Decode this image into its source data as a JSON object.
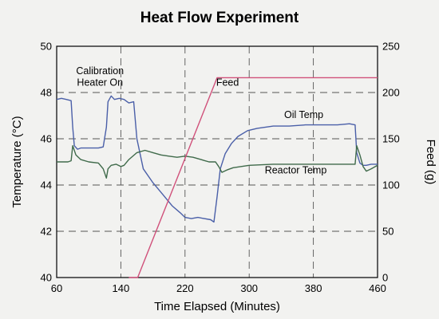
{
  "chart_data": {
    "type": "line",
    "title": "Heat Flow Experiment",
    "xlabel": "Time Elapsed (Minutes)",
    "ylabel_left": "Temperature (°C)",
    "ylabel_right": "Feed (g)",
    "xlim": [
      60,
      460
    ],
    "ylim_left": [
      40,
      50
    ],
    "ylim_right": [
      0,
      250
    ],
    "x_ticks": [
      60,
      140,
      220,
      300,
      380,
      460
    ],
    "y_left_ticks": [
      40,
      42,
      44,
      46,
      48,
      50
    ],
    "y_right_ticks": [
      0,
      50,
      100,
      150,
      200,
      250
    ],
    "grid": true,
    "annotations": [
      {
        "text": "Calibration",
        "x": 114,
        "y": 48.8
      },
      {
        "text": "Heater On",
        "x": 114,
        "y": 48.3
      },
      {
        "text": "Feed",
        "x": 273,
        "y": 48.3
      },
      {
        "text": "Oil Temp",
        "x": 368,
        "y": 46.9
      },
      {
        "text": "Reactor Temp",
        "x": 358,
        "y": 44.5
      }
    ],
    "series": [
      {
        "name": "Oil Temp",
        "axis": "left",
        "color": "#4a5fa8",
        "x": [
          60,
          66,
          72,
          78,
          80,
          82,
          86,
          90,
          96,
          104,
          112,
          118,
          122,
          124,
          128,
          132,
          138,
          144,
          150,
          156,
          160,
          168,
          180,
          192,
          204,
          214,
          220,
          228,
          236,
          244,
          252,
          256,
          260,
          264,
          270,
          278,
          286,
          298,
          310,
          330,
          350,
          370,
          390,
          410,
          425,
          432,
          434,
          438,
          442,
          446,
          452,
          460
        ],
        "y": [
          47.7,
          47.75,
          47.7,
          47.65,
          46.5,
          45.7,
          45.55,
          45.6,
          45.6,
          45.6,
          45.6,
          45.65,
          46.5,
          47.6,
          47.85,
          47.7,
          47.75,
          47.7,
          47.55,
          47.6,
          46.0,
          44.7,
          44.1,
          43.6,
          43.1,
          42.8,
          42.6,
          42.55,
          42.6,
          42.55,
          42.5,
          42.4,
          43.5,
          44.7,
          45.35,
          45.8,
          46.1,
          46.35,
          46.45,
          46.55,
          46.55,
          46.6,
          46.6,
          46.6,
          46.65,
          46.6,
          45.4,
          44.95,
          44.85,
          44.85,
          44.9,
          44.9
        ]
      },
      {
        "name": "Reactor Temp",
        "axis": "left",
        "color": "#3f6a4a",
        "x": [
          60,
          70,
          74,
          78,
          80,
          84,
          90,
          100,
          112,
          118,
          122,
          124,
          128,
          134,
          140,
          144,
          150,
          160,
          170,
          180,
          190,
          200,
          210,
          220,
          230,
          240,
          250,
          258,
          262,
          266,
          272,
          280,
          300,
          330,
          360,
          390,
          420,
          432,
          434,
          438,
          442,
          446,
          452,
          460
        ],
        "y": [
          45.0,
          45.0,
          45.0,
          45.05,
          45.7,
          45.3,
          45.1,
          45.0,
          44.95,
          44.7,
          44.3,
          44.7,
          44.85,
          44.9,
          44.8,
          44.85,
          45.1,
          45.4,
          45.5,
          45.4,
          45.3,
          45.25,
          45.2,
          45.25,
          45.2,
          45.1,
          45.0,
          45.0,
          44.8,
          44.55,
          44.65,
          44.75,
          44.85,
          44.9,
          44.9,
          44.9,
          44.9,
          44.9,
          45.7,
          45.3,
          44.8,
          44.6,
          44.7,
          44.85
        ]
      },
      {
        "name": "Feed",
        "axis": "right",
        "color": "#d0507a",
        "x": [
          150,
          161,
          260,
          460
        ],
        "y": [
          0,
          0,
          216,
          216
        ]
      }
    ]
  }
}
